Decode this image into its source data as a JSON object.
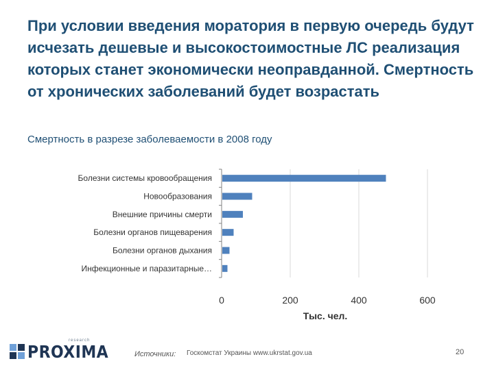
{
  "slide": {
    "title": "При условии введения моратория в первую очередь будут исчезать дешевые и высокостоимостные ЛС реализация которых станет экономически неоправданной. Смертность от хронических заболеваний будет возрастать",
    "subtitle": "Смертность в разрезе заболеваемости в 2008 году",
    "logo_text": "PROXIMA",
    "logo_small_text": "research",
    "sources_label": "Источники:",
    "sources_text": "Госкомстат Украины   www.ukrstat.gov.ua",
    "page_number": "20"
  },
  "colors": {
    "title": "#1f4f74",
    "bar": "#4f81bd",
    "grid": "#d9d9d9",
    "axis_text": "#333333"
  },
  "chart_data": {
    "type": "bar",
    "orientation": "horizontal",
    "categories": [
      "Болезни системы кровообращения",
      "Новообразования",
      "Внешние причины смерти",
      "Болезни органов пищеварения",
      "Болезни органов дыхания",
      "Инфекционные и паразитарные…"
    ],
    "values": [
      479,
      89,
      62,
      35,
      23,
      17
    ],
    "xlim": [
      0,
      600
    ],
    "xticks": [
      0,
      200,
      400,
      600
    ],
    "xlabel": "Тыс. чел.",
    "grid": true,
    "legend": "none"
  }
}
